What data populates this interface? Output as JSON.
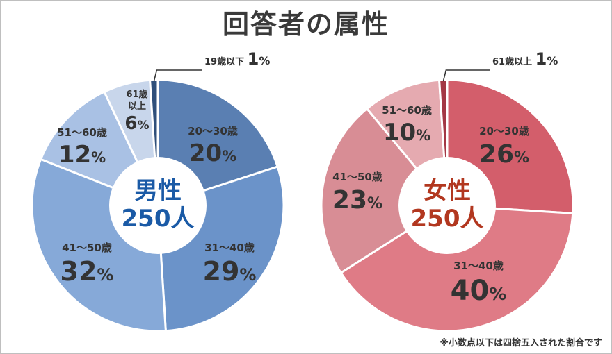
{
  "title": "回答者の属性",
  "footnote": "※小数点以下は四捨五入された割合です",
  "chart_data": [
    {
      "type": "pie",
      "variant": "donut",
      "center_label": "男性",
      "center_value": "250人",
      "center_color": "#1a5aa6",
      "slices": [
        {
          "label": "20～30歳",
          "value": 20,
          "color": "#5a7fb2"
        },
        {
          "label": "31～40歳",
          "value": 29,
          "color": "#6b93c9"
        },
        {
          "label": "41～50歳",
          "value": 32,
          "color": "#86a9d8"
        },
        {
          "label": "51～60歳",
          "value": 12,
          "color": "#a9c1e4"
        },
        {
          "label": "61歳以上",
          "value": 6,
          "color": "#c8d6eb"
        },
        {
          "label": "19歳以下",
          "value": 1,
          "color": "#2f4f7a"
        }
      ]
    },
    {
      "type": "pie",
      "variant": "donut",
      "center_label": "女性",
      "center_value": "250人",
      "center_color": "#b2371f",
      "slices": [
        {
          "label": "20～30歳",
          "value": 26,
          "color": "#d35e6b"
        },
        {
          "label": "31～40歳",
          "value": 40,
          "color": "#df7b86"
        },
        {
          "label": "41～50歳",
          "value": 23,
          "color": "#d88d95"
        },
        {
          "label": "51～60歳",
          "value": 10,
          "color": "#e5aab0"
        },
        {
          "label": "61歳以上",
          "value": 1,
          "color": "#a33845"
        }
      ]
    }
  ]
}
